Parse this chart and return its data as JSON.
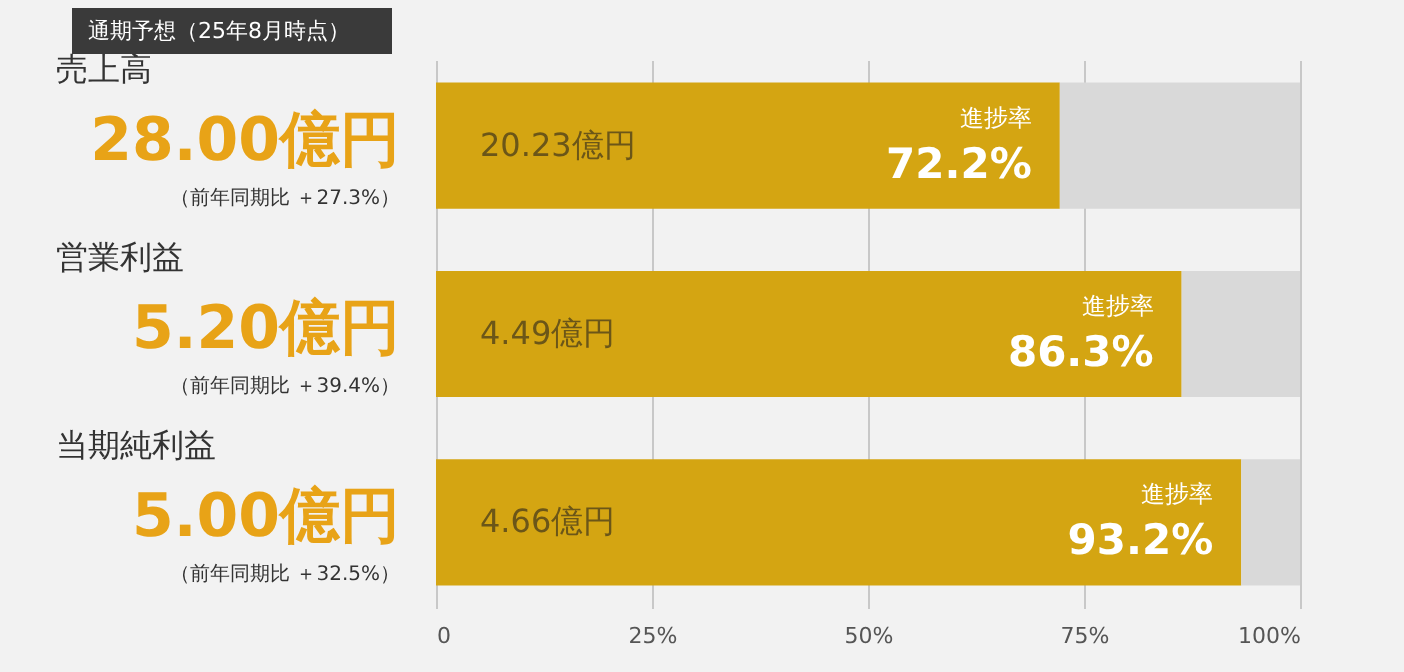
{
  "chart_data": {
    "type": "bar",
    "orientation": "horizontal",
    "stacked": true,
    "title": "通期予想（25年8月時点）",
    "categories": [
      "売上高",
      "営業利益",
      "当期純利益"
    ],
    "series": [
      {
        "color": "#d4a512",
        "values": [
          72.2,
          86.3,
          93.2
        ],
        "value_labels": [
          "進捗率 72.2%",
          "進捗率 86.3%",
          "進捗率 93.2%"
        ]
      },
      {
        "color": "#d9d9d9",
        "values": [
          27.8,
          13.7,
          6.8
        ]
      }
    ],
    "annotations": [
      "28.00億円",
      "（前年同期比 ＋27.3%）",
      "20.23億円",
      "5.20億円",
      "（前年同期比 ＋39.4%）",
      "4.49億円",
      "5.00億円",
      "（前年同期比 ＋32.5%）",
      "4.66億円"
    ],
    "xlim": [
      0,
      100
    ],
    "xticks": [
      0,
      {
        "value": 25,
        "label": "25%"
      },
      {
        "value": 50,
        "label": "50%"
      },
      {
        "value": 75,
        "label": "75%"
      },
      {
        "value": 100,
        "label": "100%"
      }
    ],
    "grid": "x",
    "legend": false
  }
}
